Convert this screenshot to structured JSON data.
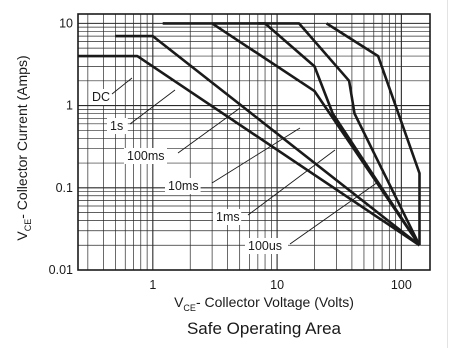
{
  "chart_data": {
    "type": "line",
    "title": "Safe Operating Area",
    "xlabel_main": "V",
    "xlabel_sub": "CE",
    "xlabel_rest": "- Collector Voltage (Volts)",
    "ylabel_main": "V",
    "ylabel_sub": "CE",
    "ylabel_rest": "- Collector Current (Amps)",
    "x_scale": "log",
    "y_scale": "log",
    "xlim": [
      0.25,
      170
    ],
    "ylim": [
      0.01,
      13
    ],
    "grid": true,
    "x_ticks": [
      {
        "value": 1,
        "label": "1"
      },
      {
        "value": 10,
        "label": "10"
      },
      {
        "value": 100,
        "label": "100"
      }
    ],
    "y_ticks": [
      {
        "value": 10,
        "label": "10"
      },
      {
        "value": 1,
        "label": "1"
      },
      {
        "value": 0.1,
        "label": "0.1"
      },
      {
        "value": 0.01,
        "label": "0.01"
      }
    ],
    "series": [
      {
        "name": "DC",
        "points": [
          [
            0.25,
            4
          ],
          [
            0.75,
            4
          ],
          [
            140,
            0.02
          ]
        ]
      },
      {
        "name": "1s",
        "points": [
          [
            0.5,
            7
          ],
          [
            1,
            7
          ],
          [
            140,
            0.02
          ]
        ]
      },
      {
        "name": "100ms",
        "points": [
          [
            1.2,
            10
          ],
          [
            3,
            10
          ],
          [
            20,
            1.5
          ],
          [
            140,
            0.02
          ]
        ]
      },
      {
        "name": "10ms",
        "points": [
          [
            3,
            10
          ],
          [
            8,
            10
          ],
          [
            20,
            3
          ],
          [
            28,
            0.8
          ],
          [
            140,
            0.02
          ]
        ]
      },
      {
        "name": "1ms",
        "points": [
          [
            7,
            10
          ],
          [
            15,
            10
          ],
          [
            38,
            2
          ],
          [
            42,
            0.8
          ],
          [
            140,
            0.02
          ]
        ]
      },
      {
        "name": "100us",
        "points": [
          [
            25,
            10
          ],
          [
            65,
            4
          ],
          [
            140,
            0.15
          ],
          [
            140,
            0.02
          ]
        ]
      }
    ],
    "labels": [
      {
        "text": "DC",
        "series": "DC"
      },
      {
        "text": "1s",
        "series": "1s"
      },
      {
        "text": "100ms",
        "series": "100ms"
      },
      {
        "text": "10ms",
        "series": "10ms"
      },
      {
        "text": "1ms",
        "series": "1ms"
      },
      {
        "text": "100us",
        "series": "100us"
      }
    ]
  }
}
